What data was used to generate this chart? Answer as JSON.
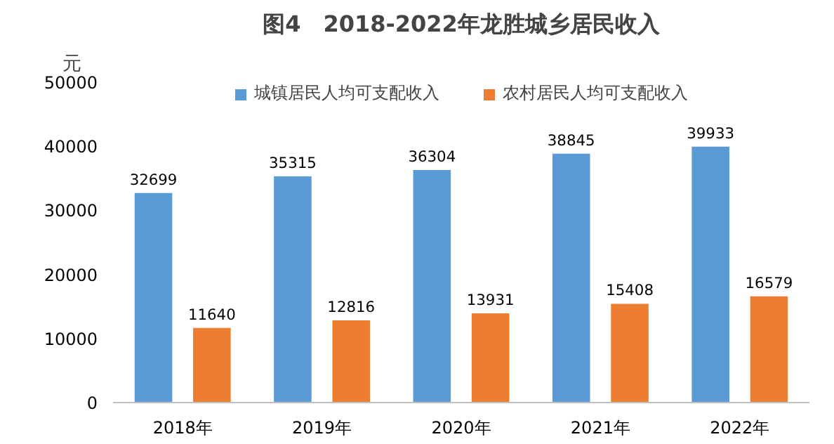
{
  "chart_data": {
    "type": "bar",
    "title": "图4　2018-2022年龙胜城乡居民收入",
    "ylabel": "元",
    "categories": [
      "2018年",
      "2019年",
      "2020年",
      "2021年",
      "2022年"
    ],
    "series": [
      {
        "name": "城镇居民人均可支配收入",
        "color": "#5b9bd5",
        "values": [
          32699,
          35315,
          36304,
          38845,
          39933
        ]
      },
      {
        "name": "农村居民人均可支配收入",
        "color": "#ed7d31",
        "values": [
          11640,
          12816,
          13931,
          15408,
          16579
        ]
      }
    ],
    "ylim": [
      0,
      50000
    ],
    "yticks": [
      0,
      10000,
      20000,
      30000,
      40000,
      50000
    ],
    "grid": false,
    "legend": "top",
    "data_labels": true
  }
}
